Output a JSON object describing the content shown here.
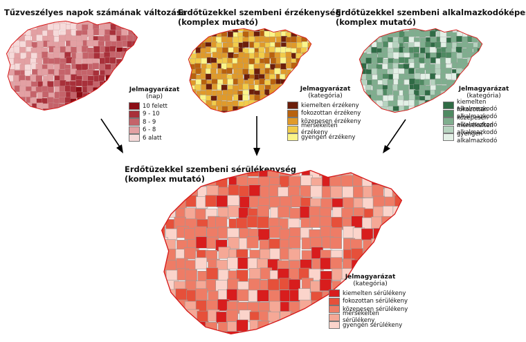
{
  "maps": [
    {
      "id": "map1",
      "title_lines": [
        "Tűzveszélyes napok számának változása"
      ],
      "legend": {
        "heading": "Jelmagyarázat",
        "subheading": "(nap)",
        "items": [
          {
            "label": "10 felett",
            "color": "#8b0d15"
          },
          {
            "label": "9 - 10",
            "color": "#a8303a"
          },
          {
            "label": "8 - 9",
            "color": "#c5636a"
          },
          {
            "label": "6 - 8",
            "color": "#e3a0a3"
          },
          {
            "label": "6 alatt",
            "color": "#f6dada"
          }
        ]
      }
    },
    {
      "id": "map2",
      "title_lines": [
        "Erdőtüzekkel szembeni érzékenység",
        "(komplex mutató)"
      ],
      "legend": {
        "heading": "Jelmagyarázat",
        "subheading": "(kategória)",
        "items": [
          {
            "label": "kiemelten érzékeny",
            "color": "#6b1e0a"
          },
          {
            "label": "fokozottan érzékeny",
            "color": "#b8620f"
          },
          {
            "label": "közepesen érzékeny",
            "color": "#e09a2a"
          },
          {
            "label": "mérsékelten érzékeny",
            "color": "#f2cc4a"
          },
          {
            "label": "gyengén érzékeny",
            "color": "#fbf58a"
          }
        ]
      }
    },
    {
      "id": "map3",
      "title_lines": [
        "Erdőtüzekkel szembeni alkalmazkodóképesség",
        "(komplex mutató)"
      ],
      "legend": {
        "heading": "Jelmagyarázat",
        "subheading": "(kategória)",
        "items": [
          {
            "label": "kiemelten alkalmazkodó",
            "color": "#2f6b45"
          },
          {
            "label": "fokozottan alkalmazkodó",
            "color": "#4f8a62"
          },
          {
            "label": "közepesen alkalmazkodó",
            "color": "#7fae8e"
          },
          {
            "label": "mérsékelten alkalmazkodó",
            "color": "#b6d3bf"
          },
          {
            "label": "gyengén alkalmazkodó",
            "color": "#e3f0e6"
          }
        ]
      }
    },
    {
      "id": "map4",
      "title_lines": [
        "Erdőtüzekkel szembeni sérülékenység",
        "(komplex mutató)"
      ],
      "legend": {
        "heading": "Jelmagyarázat",
        "subheading": "(kategória)",
        "items": [
          {
            "label": "kiemelten sérülékeny",
            "color": "#d81d1d"
          },
          {
            "label": "fokozottan sérülékeny",
            "color": "#e6503a"
          },
          {
            "label": "közepesen sérülékeny",
            "color": "#ee7c66"
          },
          {
            "label": "mérsékelten sérülékeny",
            "color": "#f5a896"
          },
          {
            "label": "gyengén sérülékeny",
            "color": "#fbd4cb"
          }
        ]
      }
    }
  ]
}
